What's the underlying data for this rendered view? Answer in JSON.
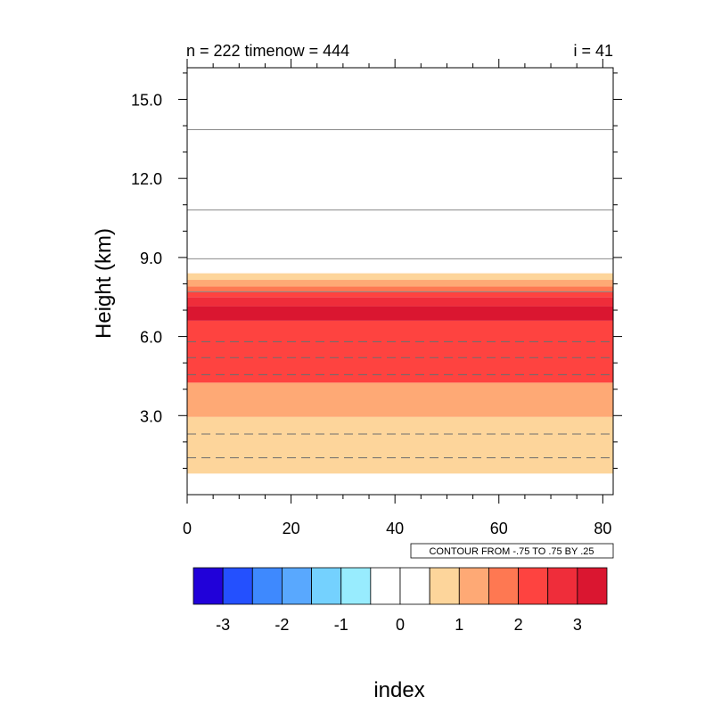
{
  "chart_data": {
    "type": "heatmap",
    "title_left": "n = 222 timenow = 444",
    "title_right": "i = 41",
    "ylabel": "Height (km)",
    "xlabel": "index",
    "xlim": [
      0,
      82
    ],
    "ylim": [
      0,
      16.2
    ],
    "x_ticks": [
      0,
      20,
      40,
      60,
      80
    ],
    "x_tick_labels": [
      "0",
      "20",
      "40",
      "60",
      "80"
    ],
    "y_ticks": [
      3,
      6,
      9,
      12,
      15
    ],
    "y_tick_labels": [
      "3.0",
      "6.0",
      "9.0",
      "12.0",
      "15.0"
    ],
    "contour_note": "CONTOUR FROM -.75 TO .75 BY .25",
    "layers": [
      {
        "from": 0.8,
        "to": 2.95,
        "color": "#fdd59b"
      },
      {
        "from": 2.95,
        "to": 4.25,
        "color": "#fea975"
      },
      {
        "from": 4.25,
        "to": 6.6,
        "color": "#fe4340"
      },
      {
        "from": 6.6,
        "to": 7.15,
        "color": "#da1630"
      },
      {
        "from": 7.15,
        "to": 7.5,
        "color": "#ef2d3a"
      },
      {
        "from": 7.5,
        "to": 7.7,
        "color": "#fe4340"
      },
      {
        "from": 7.7,
        "to": 7.9,
        "color": "#fe7852"
      },
      {
        "from": 7.9,
        "to": 8.15,
        "color": "#fea975"
      },
      {
        "from": 8.15,
        "to": 8.4,
        "color": "#fdd59b"
      }
    ],
    "contour_lines_solid": [
      13.85,
      10.8,
      8.95,
      7.7
    ],
    "contour_lines_dashed": [
      5.8,
      5.2,
      4.55,
      2.3,
      1.4
    ],
    "colorbar": {
      "colors": [
        "#2101d9",
        "#2450fe",
        "#3e89fe",
        "#59a8fe",
        "#74d1fe",
        "#98ecfe",
        "#ffffff",
        "#ffffff",
        "#fdd59b",
        "#fea975",
        "#fe7852",
        "#fe4340",
        "#ef2d3a",
        "#da1630"
      ],
      "tick_labels": [
        "-3",
        "-2",
        "-1",
        "0",
        "1",
        "2",
        "3"
      ]
    }
  }
}
